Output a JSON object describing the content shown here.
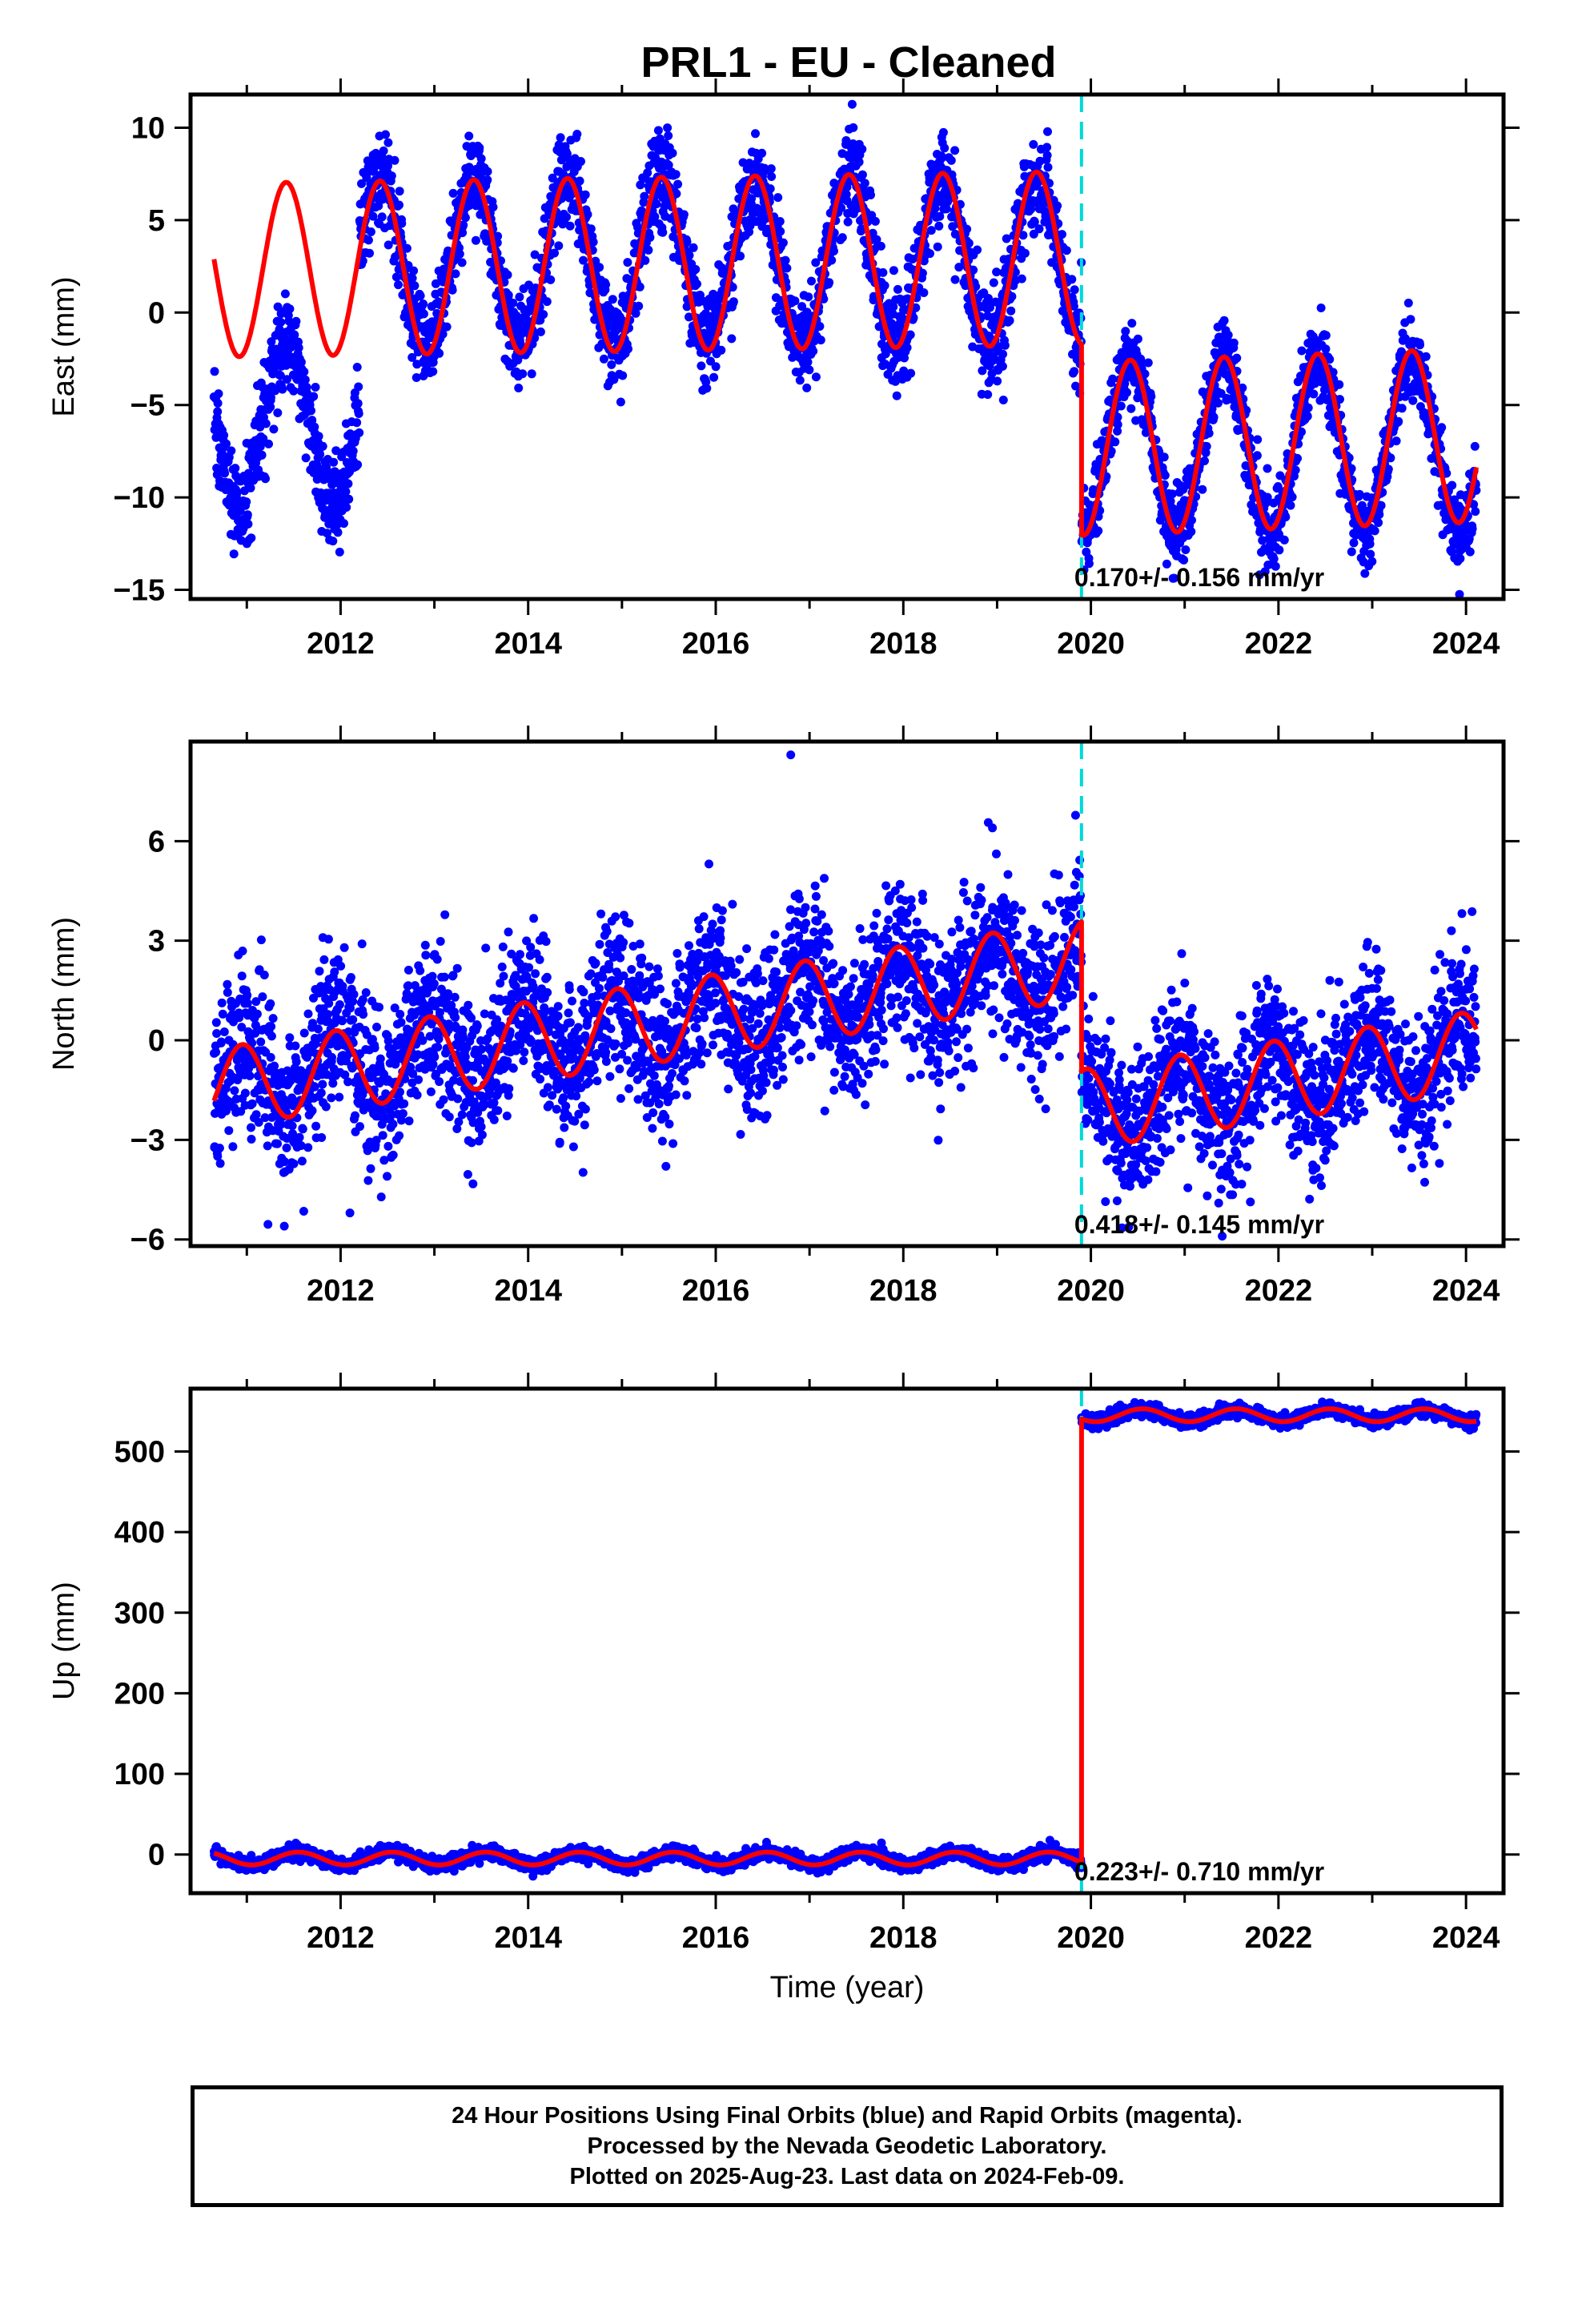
{
  "title": "PRL1  - EU - Cleaned",
  "footer": {
    "line1": "24 Hour Positions Using Final Orbits (blue) and Rapid Orbits (magenta).",
    "line2": "Processed by the Nevada Geodetic Laboratory.",
    "line3": "Plotted on 2025-Aug-23. Last data on 2024-Feb-09."
  },
  "colors": {
    "data_points": "#0000ff",
    "model_fit": "#ff0000",
    "equipment_change": "#00d8d8",
    "frame": "#000000"
  },
  "chart_data": [
    {
      "type": "scatter",
      "panel": "east",
      "ylabel": "East (mm)",
      "xlabel": "",
      "xlim": [
        2010.4,
        2024.4
      ],
      "ylim": [
        -15.5,
        11.8
      ],
      "xticks": [
        2012,
        2014,
        2016,
        2018,
        2020,
        2022,
        2024
      ],
      "yticks": [
        -15,
        -10,
        -5,
        0,
        5,
        10
      ],
      "ytick_labels": [
        "−15",
        "−10",
        "−5",
        "0",
        "5",
        "10"
      ],
      "rate_text": "0.170+/- 0.156 mm/yr",
      "equipment_change_year": 2019.9,
      "data_start": 2010.65,
      "data_end": 2024.11,
      "series": [
        {
          "style": "points",
          "segments": [
            {
              "x_range": [
                2010.65,
                2012.2
              ],
              "mean": -6.0,
              "amplitude": 4.4,
              "peak_phase": 0.42,
              "scatter": 1.3
            },
            {
              "x_range": [
                2012.2,
                2019.9
              ],
              "mean": 2.8,
              "amplitude": 4.5,
              "peak_phase": 0.42,
              "scatter": 1.3
            },
            {
              "x_range": [
                2019.9,
                2024.11
              ],
              "mean": -7.2,
              "amplitude": 4.6,
              "peak_phase": 0.42,
              "scatter": 1.1
            }
          ]
        },
        {
          "style": "line",
          "segments": [
            {
              "x_range": [
                2010.65,
                2019.9
              ],
              "mean": 2.6,
              "amplitude": 4.7,
              "peak_phase": 0.42,
              "trend_per_year": 0.07,
              "trend_ref": 2015.0
            },
            {
              "x_range": [
                2019.9,
                2024.11
              ],
              "mean": -7.0,
              "amplitude": 4.7,
              "peak_phase": 0.42,
              "trend_per_year": 0.17,
              "trend_ref": 2022.0
            }
          ],
          "step": {
            "x": 2019.9,
            "from": -1.0,
            "to": -12.0
          }
        }
      ]
    },
    {
      "type": "scatter",
      "panel": "north",
      "ylabel": "North (mm)",
      "xlabel": "",
      "xlim": [
        2010.4,
        2024.4
      ],
      "ylim": [
        -6.2,
        9.0
      ],
      "xticks": [
        2012,
        2014,
        2016,
        2018,
        2020,
        2022,
        2024
      ],
      "yticks": [
        -6,
        -3,
        0,
        3,
        6
      ],
      "ytick_labels": [
        "−6",
        "−3",
        "0",
        "3",
        "6"
      ],
      "rate_text": "0.418+/- 0.145 mm/yr",
      "equipment_change_year": 2019.9,
      "data_start": 2010.65,
      "data_end": 2024.11,
      "series": [
        {
          "style": "points",
          "segments": [
            {
              "x_range": [
                2010.65,
                2019.9
              ],
              "mean": 0.5,
              "amplitude": 1.1,
              "peak_phase": 0.95,
              "trend_per_year": 0.38,
              "trend_ref": 2015.3,
              "scatter": 1.2
            },
            {
              "x_range": [
                2019.9,
                2024.11
              ],
              "mean": -1.2,
              "amplitude": 1.1,
              "peak_phase": 0.95,
              "trend_per_year": 0.42,
              "trend_ref": 2022.0,
              "scatter": 1.1
            }
          ]
        },
        {
          "style": "line",
          "segments": [
            {
              "x_range": [
                2010.65,
                2019.9
              ],
              "mean": 0.5,
              "amplitude": 1.2,
              "peak_phase": 0.95,
              "trend_per_year": 0.42,
              "trend_ref": 2015.3
            },
            {
              "x_range": [
                2019.9,
                2024.11
              ],
              "mean": -1.2,
              "amplitude": 1.2,
              "peak_phase": 0.95,
              "trend_per_year": 0.42,
              "trend_ref": 2022.0
            }
          ],
          "step": {
            "x": 2019.9,
            "from": 3.8,
            "to": -0.8
          }
        }
      ],
      "outliers": [
        [
          2016.8,
          8.6
        ],
        [
          2018.95,
          6.4
        ],
        [
          2011.4,
          -5.6
        ],
        [
          2012.1,
          -5.2
        ],
        [
          2021.4,
          -5.9
        ]
      ]
    },
    {
      "type": "scatter",
      "panel": "up",
      "ylabel": "Up (mm)",
      "xlabel": "Time (year)",
      "xlim": [
        2010.4,
        2024.4
      ],
      "ylim": [
        -48,
        578
      ],
      "xticks": [
        2012,
        2014,
        2016,
        2018,
        2020,
        2022,
        2024
      ],
      "yticks": [
        0,
        100,
        200,
        300,
        400,
        500
      ],
      "ytick_labels": [
        "0",
        "100",
        "200",
        "300",
        "400",
        "500"
      ],
      "rate_text": "0.223+/- 0.710 mm/yr",
      "equipment_change_year": 2019.9,
      "data_start": 2010.65,
      "data_end": 2024.11,
      "series": [
        {
          "style": "points",
          "segments": [
            {
              "x_range": [
                2010.65,
                2019.9
              ],
              "mean": -5,
              "amplitude": 8,
              "peak_phase": 0.55,
              "scatter": 4.0
            },
            {
              "x_range": [
                2019.9,
                2024.11
              ],
              "mean": 545,
              "amplitude": 7,
              "peak_phase": 0.55,
              "scatter": 4.0
            }
          ]
        },
        {
          "style": "line",
          "segments": [
            {
              "x_range": [
                2010.65,
                2019.9
              ],
              "mean": -5,
              "amplitude": 8,
              "peak_phase": 0.55
            },
            {
              "x_range": [
                2019.9,
                2024.11
              ],
              "mean": 545,
              "amplitude": 8,
              "peak_phase": 0.55
            }
          ],
          "step": {
            "x": 2019.9,
            "from": -12,
            "to": 545
          }
        }
      ]
    }
  ]
}
